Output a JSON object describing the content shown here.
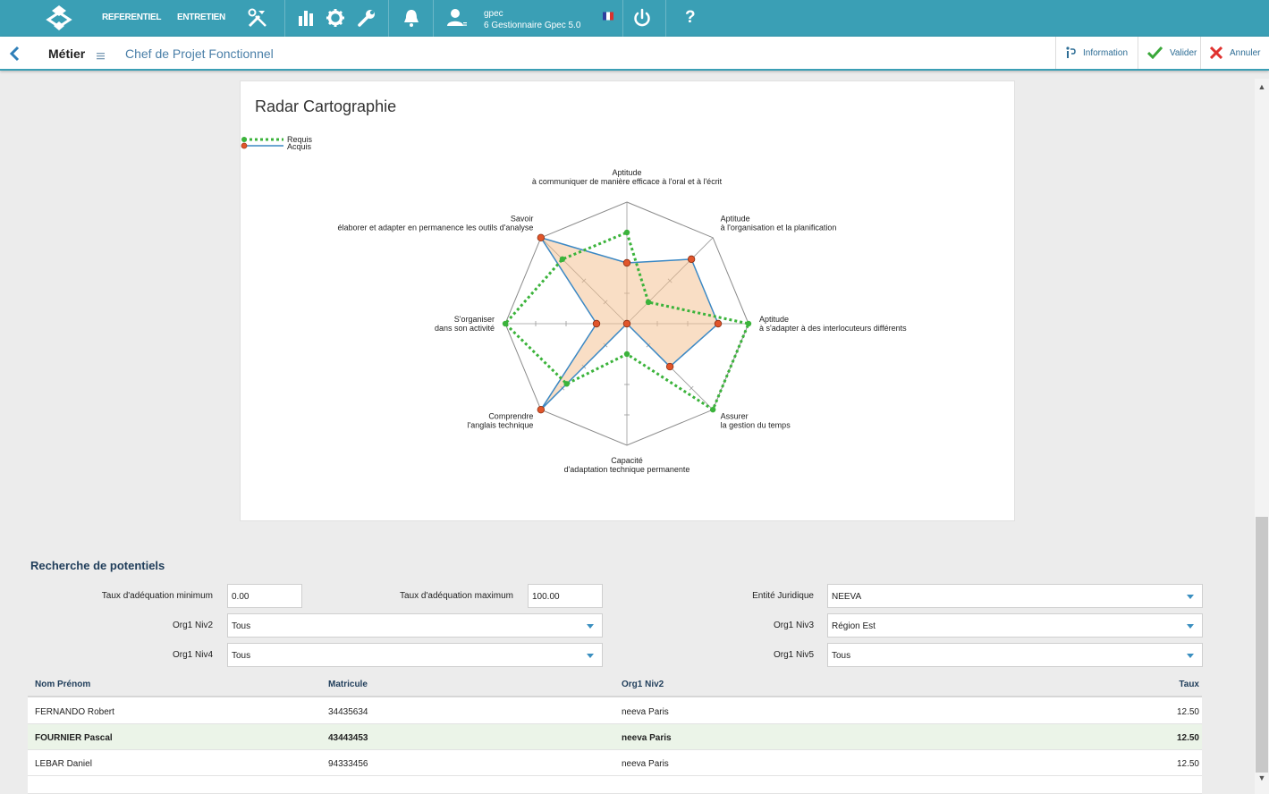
{
  "topbar": {
    "menu_referentiel": "REFERENTIEL",
    "menu_entretien": "ENTRETIEN",
    "user_name": "gpec",
    "user_role": "6 Gestionnaire Gpec 5.0",
    "help": "?"
  },
  "header": {
    "field_label": "Métier",
    "field_value": "Chef de Projet Fonctionnel",
    "info_label": "Information",
    "validate_label": "Valider",
    "cancel_label": "Annuler"
  },
  "radar": {
    "title": "Radar Cartographie",
    "legend": [
      {
        "name": "Requis",
        "color": "#3bb33b"
      },
      {
        "name": "Acquis",
        "color": "#3b88c4"
      }
    ]
  },
  "chart_data": {
    "type": "radar",
    "title": "Radar Cartographie",
    "axes": [
      [
        "Aptitude",
        "à communiquer de manière efficace à l'oral et à l'écrit"
      ],
      [
        "Aptitude",
        "à l'organisation et la planification"
      ],
      [
        "Aptitude",
        "à s'adapter à des interlocuteurs différents"
      ],
      [
        "Assurer",
        "la gestion du temps"
      ],
      [
        "Capacité",
        "d'adaptation technique permanente"
      ],
      [
        "Comprendre",
        "l'anglais technique"
      ],
      [
        "S'organiser",
        "dans son activité"
      ],
      [
        "Savoir",
        "élaborer et adapter en permanence les outils d'analyse"
      ]
    ],
    "range": [
      0,
      4
    ],
    "series": [
      {
        "name": "Requis",
        "values": [
          3,
          1,
          4,
          4,
          1,
          2.8,
          4,
          3
        ]
      },
      {
        "name": "Acquis",
        "values": [
          2,
          3,
          3,
          2,
          0,
          4,
          1,
          4
        ]
      }
    ]
  },
  "search": {
    "title": "Recherche de potentiels",
    "taux_min_label": "Taux d'adéquation minimum",
    "taux_min_value": "0.00",
    "taux_max_label": "Taux d'adéquation maximum",
    "taux_max_value": "100.00",
    "entite_label": "Entité Juridique",
    "entite_value": "NEEVA",
    "org1niv2_label": "Org1 Niv2",
    "org1niv2_value": "Tous",
    "org1niv3_label": "Org1 Niv3",
    "org1niv3_value": "Région Est",
    "org1niv4_label": "Org1 Niv4",
    "org1niv4_value": "Tous",
    "org1niv5_label": "Org1 Niv5",
    "org1niv5_value": "Tous"
  },
  "table": {
    "headers": [
      "Nom Prénom",
      "Matricule",
      "Org1 Niv2",
      "Taux"
    ],
    "rows": [
      [
        "FERNANDO Robert",
        "34435634",
        "neeva Paris",
        "12.50"
      ],
      [
        "FOURNIER Pascal",
        "43443453",
        "neeva Paris",
        "12.50"
      ],
      [
        "LEBAR Daniel",
        "94333456",
        "neeva Paris",
        "12.50"
      ]
    ]
  }
}
